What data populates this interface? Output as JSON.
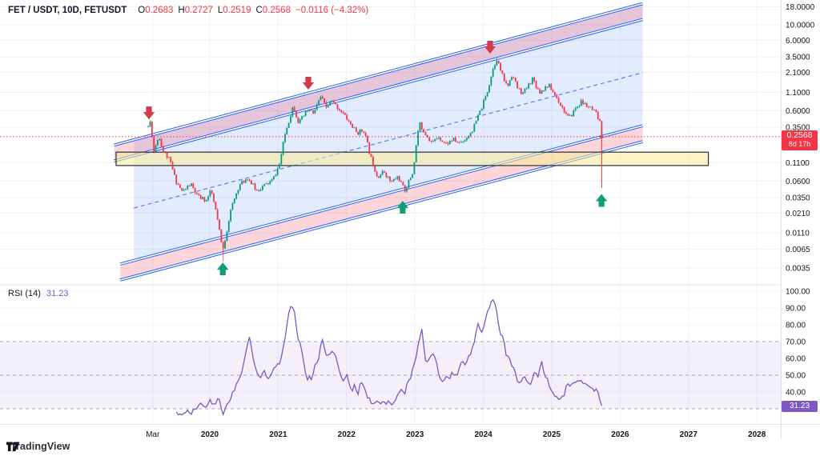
{
  "header": {
    "symbol_line": "FET / USDT, 10D, FETUSDT",
    "o_label": "O",
    "o_value": "0.2683",
    "h_label": "H",
    "h_value": "0.2727",
    "l_label": "L",
    "l_value": "0.2519",
    "c_label": "C",
    "c_value": "0.2568",
    "change": "−0.0116 (−4.32%)"
  },
  "rsi_pane": {
    "title": "RSI (14)",
    "value": "31.23"
  },
  "price_axis": {
    "last": "0.2568",
    "countdown": "8d 17h",
    "ticks": [
      {
        "label": "18.0000",
        "value": 18.0
      },
      {
        "label": "10.0000",
        "value": 10.0
      },
      {
        "label": "6.0000",
        "value": 6.0
      },
      {
        "label": "3.5000",
        "value": 3.5
      },
      {
        "label": "2.1000",
        "value": 2.1
      },
      {
        "label": "1.1000",
        "value": 1.1
      },
      {
        "label": "0.6000",
        "value": 0.6
      },
      {
        "label": "0.3500",
        "value": 0.35
      },
      {
        "label": "0.1100",
        "value": 0.11
      },
      {
        "label": "0.0600",
        "value": 0.06
      },
      {
        "label": "0.0350",
        "value": 0.035
      },
      {
        "label": "0.0210",
        "value": 0.021
      },
      {
        "label": "0.0110",
        "value": 0.011
      },
      {
        "label": "0.0065",
        "value": 0.0065
      },
      {
        "label": "0.0035",
        "value": 0.0035
      }
    ]
  },
  "rsi_axis": {
    "ticks": [
      {
        "label": "100.00",
        "value": 100
      },
      {
        "label": "90.00",
        "value": 90
      },
      {
        "label": "80.00",
        "value": 80
      },
      {
        "label": "70.00",
        "value": 70
      },
      {
        "label": "60.00",
        "value": 60
      },
      {
        "label": "50.00",
        "value": 50
      },
      {
        "label": "40.00",
        "value": 40
      }
    ],
    "badge": "31.23"
  },
  "time_axis": {
    "labels": [
      {
        "text": "Mar",
        "t": 2019.165,
        "bold": false
      },
      {
        "text": "2020",
        "t": 2020,
        "bold": true
      },
      {
        "text": "2021",
        "t": 2021,
        "bold": true
      },
      {
        "text": "2022",
        "t": 2022,
        "bold": true
      },
      {
        "text": "2023",
        "t": 2023,
        "bold": true
      },
      {
        "text": "2024",
        "t": 2024,
        "bold": true
      },
      {
        "text": "2025",
        "t": 2025,
        "bold": true
      },
      {
        "text": "2026",
        "t": 2026,
        "bold": true
      },
      {
        "text": "2027",
        "t": 2027,
        "bold": true
      },
      {
        "text": "2028",
        "t": 2028,
        "bold": true
      }
    ]
  },
  "footer": {
    "brand": "TradingView"
  },
  "colors": {
    "up": "#089981",
    "down": "#f23645",
    "channel_line": "#2962ff",
    "channel_fill": "rgba(41,98,255,0.13)",
    "band_fill": "rgba(236,64,84,0.22)",
    "midline": "#5b7bf7",
    "zone_fill": "rgba(249,235,150,0.55)",
    "zone_border": "#2a2e39",
    "sell_arrow": "#d13b4b",
    "buy_arrow": "#109d78",
    "rsi_line": "#7e57c2",
    "rsi_band": "rgba(126,87,194,0.09)",
    "rsi_level": "#9598a1",
    "grid": "#eef1f8",
    "border": "#dde1e8",
    "price_line": "#f23645"
  },
  "chart_data": {
    "type": "candlestick",
    "symbol": "FETUSDT",
    "interval": "10D",
    "scale": "log",
    "last_bar": {
      "open": 0.2683,
      "high": 0.2727,
      "low": 0.2519,
      "close": 0.2568,
      "change": -0.0116,
      "change_pct": -4.32
    },
    "bars": {
      "t_start": 2019.1,
      "t_step": 0.0274,
      "count": 243,
      "seed": 11,
      "noise": 0.16,
      "wick": 0.05
    },
    "price_path_anchors": [
      [
        2019.1,
        0.36
      ],
      [
        2019.135,
        0.43
      ],
      [
        2019.18,
        0.155
      ],
      [
        2019.25,
        0.27
      ],
      [
        2019.32,
        0.16
      ],
      [
        2019.42,
        0.115
      ],
      [
        2019.5,
        0.062
      ],
      [
        2019.6,
        0.042
      ],
      [
        2019.72,
        0.055
      ],
      [
        2019.82,
        0.036
      ],
      [
        2019.95,
        0.032
      ],
      [
        2020.02,
        0.044
      ],
      [
        2020.1,
        0.02
      ],
      [
        2020.19,
        0.006
      ],
      [
        2020.3,
        0.022
      ],
      [
        2020.42,
        0.05
      ],
      [
        2020.55,
        0.068
      ],
      [
        2020.68,
        0.044
      ],
      [
        2020.8,
        0.052
      ],
      [
        2020.92,
        0.062
      ],
      [
        2021.02,
        0.105
      ],
      [
        2021.1,
        0.28
      ],
      [
        2021.22,
        0.72
      ],
      [
        2021.3,
        0.4
      ],
      [
        2021.44,
        0.62
      ],
      [
        2021.52,
        0.55
      ],
      [
        2021.62,
        0.95
      ],
      [
        2021.7,
        0.66
      ],
      [
        2021.78,
        0.82
      ],
      [
        2021.93,
        0.58
      ],
      [
        2022.05,
        0.4
      ],
      [
        2022.15,
        0.29
      ],
      [
        2022.25,
        0.32
      ],
      [
        2022.35,
        0.135
      ],
      [
        2022.45,
        0.07
      ],
      [
        2022.55,
        0.082
      ],
      [
        2022.65,
        0.057
      ],
      [
        2022.75,
        0.07
      ],
      [
        2022.85,
        0.044
      ],
      [
        2022.97,
        0.08
      ],
      [
        2023.06,
        0.4
      ],
      [
        2023.15,
        0.29
      ],
      [
        2023.25,
        0.21
      ],
      [
        2023.35,
        0.26
      ],
      [
        2023.45,
        0.2
      ],
      [
        2023.55,
        0.235
      ],
      [
        2023.65,
        0.21
      ],
      [
        2023.75,
        0.245
      ],
      [
        2023.85,
        0.33
      ],
      [
        2023.95,
        0.58
      ],
      [
        2024.05,
        1.05
      ],
      [
        2024.13,
        2.2
      ],
      [
        2024.195,
        3.35
      ],
      [
        2024.28,
        1.85
      ],
      [
        2024.35,
        1.3
      ],
      [
        2024.42,
        2.0
      ],
      [
        2024.5,
        1.25
      ],
      [
        2024.58,
        1.05
      ],
      [
        2024.65,
        1.35
      ],
      [
        2024.72,
        1.75
      ],
      [
        2024.82,
        1.1
      ],
      [
        2024.95,
        1.4
      ],
      [
        2025.05,
        1.0
      ],
      [
        2025.15,
        0.68
      ],
      [
        2025.25,
        0.46
      ],
      [
        2025.35,
        0.66
      ],
      [
        2025.43,
        0.8
      ],
      [
        2025.52,
        0.7
      ],
      [
        2025.6,
        0.6
      ],
      [
        2025.66,
        0.52
      ],
      [
        2025.704,
        0.4
      ],
      [
        2025.731,
        0.2568
      ]
    ],
    "forced_extremes": [
      {
        "t": 2020.196,
        "low": 0.0044
      },
      {
        "t": 2024.196,
        "high": 3.47
      },
      {
        "t": 2025.731,
        "low": 0.2519,
        "close": 0.2568
      }
    ],
    "channel": {
      "upper_top": {
        "t1": 2018.6,
        "p1": 0.195,
        "t2": 2026.33,
        "p2": 20.0
      },
      "upper_bottom": {
        "t1": 2018.6,
        "p1": 0.116,
        "t2": 2026.33,
        "p2": 11.9
      },
      "lower_top": {
        "t1": 2018.69,
        "p1": 0.00397,
        "t2": 2026.33,
        "p2": 0.368
      },
      "lower_bottom": {
        "t1": 2018.69,
        "p1": 0.00236,
        "t2": 2026.33,
        "p2": 0.219
      },
      "midline": {
        "t1": 2018.89,
        "p1": 0.0249,
        "t2": 2026.33,
        "p2": 2.09
      },
      "fill_t_start": 2018.89
    },
    "support_zone": {
      "t1": 2018.63,
      "t2": 2027.29,
      "p_top": 0.155,
      "p_bottom": 0.1
    },
    "last_price": 0.2568,
    "last_bar_line": {
      "t": 2025.731,
      "p1": 0.4,
      "p2": 0.048
    },
    "markers": [
      {
        "type": "sell",
        "t": 2019.11,
        "price": 0.56
      },
      {
        "type": "sell",
        "t": 2021.44,
        "price": 1.48
      },
      {
        "type": "sell",
        "t": 2024.098,
        "price": 4.8
      },
      {
        "type": "buy",
        "t": 2020.19,
        "price": 0.0034
      },
      {
        "type": "buy",
        "t": 2022.82,
        "price": 0.0256
      },
      {
        "type": "buy",
        "t": 2025.728,
        "price": 0.032
      }
    ],
    "rsi": {
      "period": 14,
      "last_value": 31.23,
      "levels": {
        "upper": 70,
        "middle": 50,
        "lower": 30
      },
      "points": [
        [
          2019.51,
          28
        ],
        [
          2019.58,
          26
        ],
        [
          2019.65,
          29
        ],
        [
          2019.72,
          27
        ],
        [
          2019.79,
          30
        ],
        [
          2019.86,
          34
        ],
        [
          2019.93,
          30
        ],
        [
          2020.0,
          35
        ],
        [
          2020.07,
          32
        ],
        [
          2020.13,
          37
        ],
        [
          2020.19,
          26
        ],
        [
          2020.26,
          33
        ],
        [
          2020.33,
          39
        ],
        [
          2020.4,
          45
        ],
        [
          2020.46,
          50
        ],
        [
          2020.52,
          62
        ],
        [
          2020.58,
          73
        ],
        [
          2020.63,
          60
        ],
        [
          2020.68,
          52
        ],
        [
          2020.74,
          49
        ],
        [
          2020.8,
          52
        ],
        [
          2020.86,
          48
        ],
        [
          2020.91,
          52
        ],
        [
          2020.97,
          56
        ],
        [
          2021.03,
          58
        ],
        [
          2021.09,
          70
        ],
        [
          2021.15,
          85
        ],
        [
          2021.19,
          93
        ],
        [
          2021.24,
          88
        ],
        [
          2021.29,
          71
        ],
        [
          2021.33,
          69
        ],
        [
          2021.38,
          55
        ],
        [
          2021.42,
          47
        ],
        [
          2021.45,
          50
        ],
        [
          2021.49,
          46
        ],
        [
          2021.53,
          56
        ],
        [
          2021.58,
          57
        ],
        [
          2021.64,
          73
        ],
        [
          2021.69,
          63
        ],
        [
          2021.73,
          61
        ],
        [
          2021.78,
          63
        ],
        [
          2021.83,
          64
        ],
        [
          2021.87,
          56
        ],
        [
          2021.92,
          48
        ],
        [
          2021.97,
          47
        ],
        [
          2022.0,
          50
        ],
        [
          2022.04,
          45
        ],
        [
          2022.08,
          41
        ],
        [
          2022.12,
          44
        ],
        [
          2022.17,
          39
        ],
        [
          2022.2,
          45
        ],
        [
          2022.24,
          46
        ],
        [
          2022.29,
          38
        ],
        [
          2022.34,
          35
        ],
        [
          2022.39,
          33
        ],
        [
          2022.44,
          34
        ],
        [
          2022.48,
          33
        ],
        [
          2022.53,
          34
        ],
        [
          2022.58,
          33
        ],
        [
          2022.62,
          35
        ],
        [
          2022.67,
          33
        ],
        [
          2022.72,
          36
        ],
        [
          2022.76,
          40
        ],
        [
          2022.81,
          42
        ],
        [
          2022.85,
          38
        ],
        [
          2022.88,
          44
        ],
        [
          2022.93,
          48
        ],
        [
          2022.97,
          55
        ],
        [
          2023.02,
          62
        ],
        [
          2023.07,
          72
        ],
        [
          2023.1,
          78
        ],
        [
          2023.14,
          63
        ],
        [
          2023.17,
          56
        ],
        [
          2023.22,
          60
        ],
        [
          2023.27,
          62
        ],
        [
          2023.31,
          58
        ],
        [
          2023.36,
          48
        ],
        [
          2023.41,
          45
        ],
        [
          2023.45,
          50
        ],
        [
          2023.5,
          47
        ],
        [
          2023.55,
          52
        ],
        [
          2023.6,
          49
        ],
        [
          2023.64,
          53
        ],
        [
          2023.69,
          58
        ],
        [
          2023.74,
          55
        ],
        [
          2023.78,
          60
        ],
        [
          2023.83,
          65
        ],
        [
          2023.88,
          72
        ],
        [
          2023.92,
          80
        ],
        [
          2023.97,
          75
        ],
        [
          2024.02,
          80
        ],
        [
          2024.06,
          88
        ],
        [
          2024.1,
          92
        ],
        [
          2024.14,
          94
        ],
        [
          2024.19,
          90
        ],
        [
          2024.24,
          75
        ],
        [
          2024.29,
          74
        ],
        [
          2024.33,
          62
        ],
        [
          2024.38,
          60
        ],
        [
          2024.43,
          55
        ],
        [
          2024.49,
          48
        ],
        [
          2024.52,
          45
        ],
        [
          2024.57,
          48
        ],
        [
          2024.6,
          50
        ],
        [
          2024.64,
          47
        ],
        [
          2024.68,
          44
        ],
        [
          2024.72,
          49
        ],
        [
          2024.75,
          51
        ],
        [
          2024.8,
          49
        ],
        [
          2024.85,
          60
        ],
        [
          2024.9,
          48
        ],
        [
          2024.94,
          47
        ],
        [
          2024.99,
          42
        ],
        [
          2025.04,
          39
        ],
        [
          2025.08,
          36
        ],
        [
          2025.13,
          36
        ],
        [
          2025.18,
          37
        ],
        [
          2025.22,
          46
        ],
        [
          2025.27,
          44
        ],
        [
          2025.32,
          45
        ],
        [
          2025.36,
          46
        ],
        [
          2025.41,
          47
        ],
        [
          2025.46,
          45
        ],
        [
          2025.5,
          44
        ],
        [
          2025.55,
          44
        ],
        [
          2025.6,
          42
        ],
        [
          2025.64,
          41
        ],
        [
          2025.69,
          40
        ],
        [
          2025.71,
          33
        ],
        [
          2025.74,
          31.23
        ]
      ]
    }
  }
}
